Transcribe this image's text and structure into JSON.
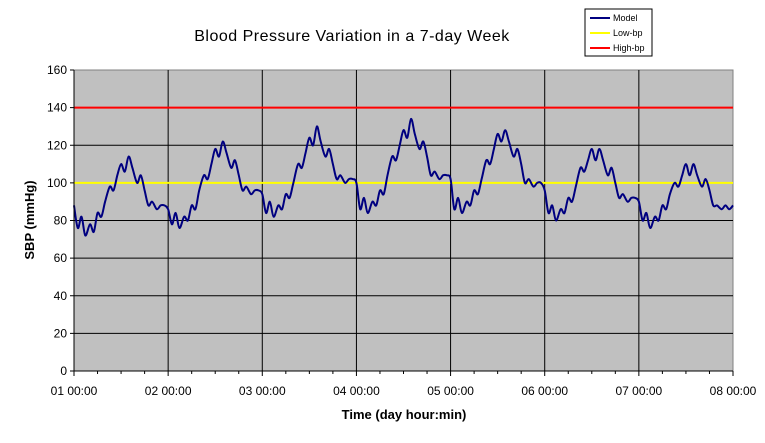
{
  "chart_data": {
    "type": "line",
    "title": "Blood Pressure Variation in a 7-day Week",
    "xlabel": "Time (day hour:min)",
    "ylabel": "SBP (mmHg)",
    "ylim": [
      0,
      160
    ],
    "yticks": [
      0,
      20,
      40,
      60,
      80,
      100,
      120,
      140,
      160
    ],
    "xlim": [
      1,
      8
    ],
    "xticks": [
      1,
      2,
      3,
      4,
      5,
      6,
      7,
      8
    ],
    "xtick_labels": [
      "01 00:00",
      "02 00:00",
      "03 00:00",
      "04 00:00",
      "05 00:00",
      "06 00:00",
      "07 00:00",
      "08 00:00"
    ],
    "grid": true,
    "plot_background": "#c0c0c0",
    "legend_position": "top-right",
    "series": [
      {
        "name": "Model",
        "color": "#000080",
        "x": [
          1.0,
          1.04,
          1.08,
          1.12,
          1.17,
          1.21,
          1.25,
          1.29,
          1.33,
          1.38,
          1.42,
          1.46,
          1.5,
          1.54,
          1.58,
          1.62,
          1.67,
          1.71,
          1.75,
          1.79,
          1.83,
          1.88,
          1.92,
          1.96,
          2.0,
          2.04,
          2.08,
          2.12,
          2.17,
          2.21,
          2.25,
          2.29,
          2.33,
          2.38,
          2.42,
          2.46,
          2.5,
          2.54,
          2.58,
          2.62,
          2.67,
          2.71,
          2.75,
          2.79,
          2.83,
          2.88,
          2.92,
          2.96,
          3.0,
          3.04,
          3.08,
          3.12,
          3.17,
          3.21,
          3.25,
          3.29,
          3.33,
          3.38,
          3.42,
          3.46,
          3.5,
          3.54,
          3.58,
          3.62,
          3.67,
          3.71,
          3.75,
          3.79,
          3.83,
          3.88,
          3.92,
          3.96,
          4.0,
          4.04,
          4.08,
          4.12,
          4.17,
          4.21,
          4.25,
          4.29,
          4.33,
          4.38,
          4.42,
          4.46,
          4.5,
          4.54,
          4.58,
          4.62,
          4.67,
          4.71,
          4.75,
          4.79,
          4.83,
          4.88,
          4.92,
          4.96,
          5.0,
          5.04,
          5.08,
          5.12,
          5.17,
          5.21,
          5.25,
          5.29,
          5.33,
          5.38,
          5.42,
          5.46,
          5.5,
          5.54,
          5.58,
          5.62,
          5.67,
          5.71,
          5.75,
          5.79,
          5.83,
          5.88,
          5.92,
          5.96,
          6.0,
          6.04,
          6.08,
          6.12,
          6.17,
          6.21,
          6.25,
          6.29,
          6.33,
          6.38,
          6.42,
          6.46,
          6.5,
          6.54,
          6.58,
          6.62,
          6.67,
          6.71,
          6.75,
          6.79,
          6.83,
          6.88,
          6.92,
          6.96,
          7.0,
          7.04,
          7.08,
          7.12,
          7.17,
          7.21,
          7.25,
          7.29,
          7.33,
          7.38,
          7.42,
          7.46,
          7.5,
          7.54,
          7.58,
          7.62,
          7.67,
          7.71,
          7.75,
          7.79,
          7.83,
          7.88,
          7.92,
          7.96,
          8.0
        ],
        "y": [
          88,
          76,
          82,
          72,
          78,
          74,
          84,
          82,
          90,
          98,
          96,
          104,
          110,
          106,
          114,
          108,
          100,
          104,
          96,
          88,
          90,
          86,
          88,
          88,
          86,
          78,
          84,
          76,
          82,
          80,
          88,
          86,
          96,
          104,
          102,
          110,
          118,
          114,
          122,
          116,
          108,
          112,
          104,
          96,
          98,
          94,
          96,
          96,
          94,
          84,
          90,
          82,
          88,
          86,
          94,
          92,
          100,
          110,
          108,
          116,
          124,
          120,
          130,
          122,
          114,
          118,
          110,
          102,
          104,
          100,
          102,
          102,
          100,
          86,
          92,
          84,
          90,
          88,
          96,
          94,
          104,
          114,
          112,
          120,
          128,
          124,
          134,
          126,
          118,
          122,
          114,
          104,
          106,
          102,
          104,
          104,
          102,
          86,
          92,
          84,
          90,
          88,
          96,
          94,
          102,
          112,
          110,
          118,
          126,
          122,
          128,
          122,
          114,
          118,
          110,
          100,
          102,
          98,
          100,
          100,
          96,
          84,
          88,
          80,
          86,
          84,
          92,
          90,
          98,
          108,
          106,
          112,
          118,
          112,
          118,
          112,
          104,
          108,
          100,
          92,
          94,
          90,
          92,
          92,
          90,
          80,
          84,
          76,
          82,
          80,
          88,
          86,
          94,
          100,
          98,
          104,
          110,
          104,
          110,
          104,
          98,
          102,
          96,
          88,
          88,
          86,
          88,
          86,
          88
        ]
      },
      {
        "name": "Low-bp",
        "color": "#ffff00",
        "constant": 100
      },
      {
        "name": "High-bp",
        "color": "#ff0000",
        "constant": 140
      }
    ]
  }
}
